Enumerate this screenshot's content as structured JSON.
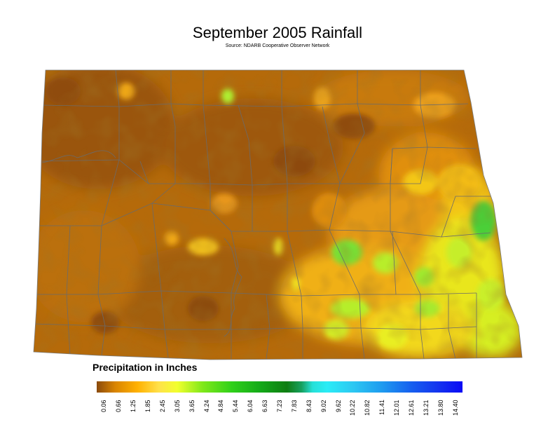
{
  "title": "September 2005 Rainfall",
  "source": "Source: NDARB Cooperative Observer Network",
  "legend": {
    "title": "Precipitation in Inches",
    "ticks": [
      "0.06",
      "0.66",
      "1.25",
      "1.85",
      "2.45",
      "3.05",
      "3.65",
      "4.24",
      "4.84",
      "5.44",
      "6.04",
      "6.63",
      "7.23",
      "7.83",
      "8.43",
      "9.02",
      "9.62",
      "10.22",
      "10.82",
      "11.41",
      "12.01",
      "12.61",
      "13.21",
      "13.80",
      "14.40"
    ],
    "colors": [
      "#8a4a0c",
      "#d98400",
      "#ffb000",
      "#ffe14a",
      "#f2ff2e",
      "#c8ff20",
      "#7fe81a",
      "#2fd01a",
      "#12a818",
      "#0f7d12",
      "#17a05e",
      "#25e0d8",
      "#2aecf6",
      "#2cc8f2",
      "#1e9bef",
      "#1878ef",
      "#165fef",
      "#1448ef",
      "#1435ef",
      "#1220ef",
      "#0a0af5"
    ]
  },
  "map": {
    "region": "North Dakota",
    "colors": {
      "low": "#9b5208",
      "mid": "#d98a0b",
      "orange": "#f0a216",
      "yellow": "#f6e51a",
      "green": "#7ee33b",
      "county_line": "#6b6b6b"
    }
  }
}
